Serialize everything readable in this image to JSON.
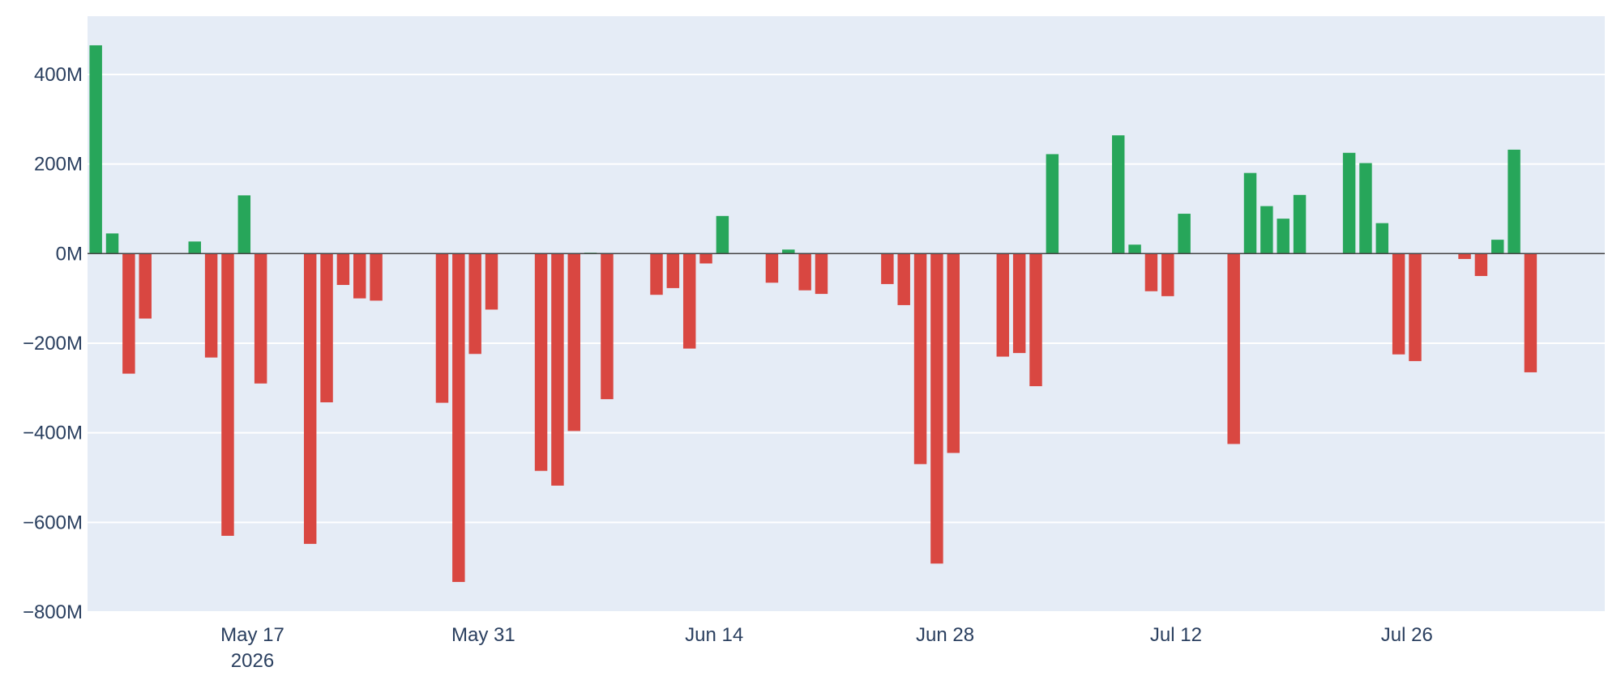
{
  "chart_data": {
    "type": "bar",
    "title": "",
    "xlabel": "",
    "ylabel": "",
    "x_axis": {
      "type": "date",
      "start": "2026-05-07",
      "end": "2026-08-07",
      "ticks": [
        {
          "date": "2026-05-17",
          "label": "May 17",
          "sublabel": "2026"
        },
        {
          "date": "2026-05-31",
          "label": "May 31",
          "sublabel": ""
        },
        {
          "date": "2026-06-14",
          "label": "Jun 14",
          "sublabel": ""
        },
        {
          "date": "2026-06-28",
          "label": "Jun 28",
          "sublabel": ""
        },
        {
          "date": "2026-07-12",
          "label": "Jul 12",
          "sublabel": ""
        },
        {
          "date": "2026-07-26",
          "label": "Jul 26",
          "sublabel": ""
        }
      ]
    },
    "y_axis": {
      "range": [
        -800,
        530
      ],
      "unit": "M",
      "ticks": [
        {
          "value": 400,
          "label": "400M"
        },
        {
          "value": 200,
          "label": "200M"
        },
        {
          "value": 0,
          "label": "0M"
        },
        {
          "value": -200,
          "label": "−200M"
        },
        {
          "value": -400,
          "label": "−400M"
        },
        {
          "value": -600,
          "label": "−600M"
        },
        {
          "value": -800,
          "label": "−800M"
        }
      ]
    },
    "grid": true,
    "legend": "none",
    "colors": {
      "positive": "#27a65a",
      "negative": "#d94741",
      "plot_bg": "#e5ecf6",
      "grid": "#ffffff",
      "zero_line": "#444444"
    },
    "points": [
      {
        "date": "2026-05-07",
        "value": 465
      },
      {
        "date": "2026-05-08",
        "value": 45
      },
      {
        "date": "2026-05-09",
        "value": -268
      },
      {
        "date": "2026-05-10",
        "value": -145
      },
      {
        "date": "2026-05-13",
        "value": 27
      },
      {
        "date": "2026-05-14",
        "value": -232
      },
      {
        "date": "2026-05-15",
        "value": -630
      },
      {
        "date": "2026-05-16",
        "value": 130
      },
      {
        "date": "2026-05-17",
        "value": -290
      },
      {
        "date": "2026-05-20",
        "value": -648
      },
      {
        "date": "2026-05-21",
        "value": -332
      },
      {
        "date": "2026-05-22",
        "value": -70
      },
      {
        "date": "2026-05-23",
        "value": -100
      },
      {
        "date": "2026-05-24",
        "value": -105
      },
      {
        "date": "2026-05-28",
        "value": -333
      },
      {
        "date": "2026-05-29",
        "value": -733
      },
      {
        "date": "2026-05-30",
        "value": -224
      },
      {
        "date": "2026-05-31",
        "value": -125
      },
      {
        "date": "2026-06-03",
        "value": -485
      },
      {
        "date": "2026-06-04",
        "value": -518
      },
      {
        "date": "2026-06-05",
        "value": -396
      },
      {
        "date": "2026-06-06",
        "value": 2
      },
      {
        "date": "2026-06-07",
        "value": -325
      },
      {
        "date": "2026-06-10",
        "value": -92
      },
      {
        "date": "2026-06-11",
        "value": -77
      },
      {
        "date": "2026-06-12",
        "value": -212
      },
      {
        "date": "2026-06-13",
        "value": -22
      },
      {
        "date": "2026-06-14",
        "value": 84
      },
      {
        "date": "2026-06-17",
        "value": -65
      },
      {
        "date": "2026-06-18",
        "value": 9
      },
      {
        "date": "2026-06-19",
        "value": -82
      },
      {
        "date": "2026-06-20",
        "value": -90
      },
      {
        "date": "2026-06-24",
        "value": -68
      },
      {
        "date": "2026-06-25",
        "value": -115
      },
      {
        "date": "2026-06-26",
        "value": -470
      },
      {
        "date": "2026-06-27",
        "value": -692
      },
      {
        "date": "2026-06-28",
        "value": -445
      },
      {
        "date": "2026-07-01",
        "value": -230
      },
      {
        "date": "2026-07-02",
        "value": -222
      },
      {
        "date": "2026-07-03",
        "value": -296
      },
      {
        "date": "2026-07-04",
        "value": 222
      },
      {
        "date": "2026-07-08",
        "value": 264
      },
      {
        "date": "2026-07-09",
        "value": 20
      },
      {
        "date": "2026-07-10",
        "value": -84
      },
      {
        "date": "2026-07-11",
        "value": -95
      },
      {
        "date": "2026-07-12",
        "value": 89
      },
      {
        "date": "2026-07-15",
        "value": -425
      },
      {
        "date": "2026-07-16",
        "value": 180
      },
      {
        "date": "2026-07-17",
        "value": 106
      },
      {
        "date": "2026-07-18",
        "value": 78
      },
      {
        "date": "2026-07-19",
        "value": 131
      },
      {
        "date": "2026-07-22",
        "value": 225
      },
      {
        "date": "2026-07-23",
        "value": 202
      },
      {
        "date": "2026-07-24",
        "value": 68
      },
      {
        "date": "2026-07-25",
        "value": -225
      },
      {
        "date": "2026-07-26",
        "value": -240
      },
      {
        "date": "2026-07-29",
        "value": -12
      },
      {
        "date": "2026-07-30",
        "value": -50
      },
      {
        "date": "2026-07-31",
        "value": 31
      },
      {
        "date": "2026-08-01",
        "value": 232
      },
      {
        "date": "2026-08-02",
        "value": -265
      }
    ]
  }
}
